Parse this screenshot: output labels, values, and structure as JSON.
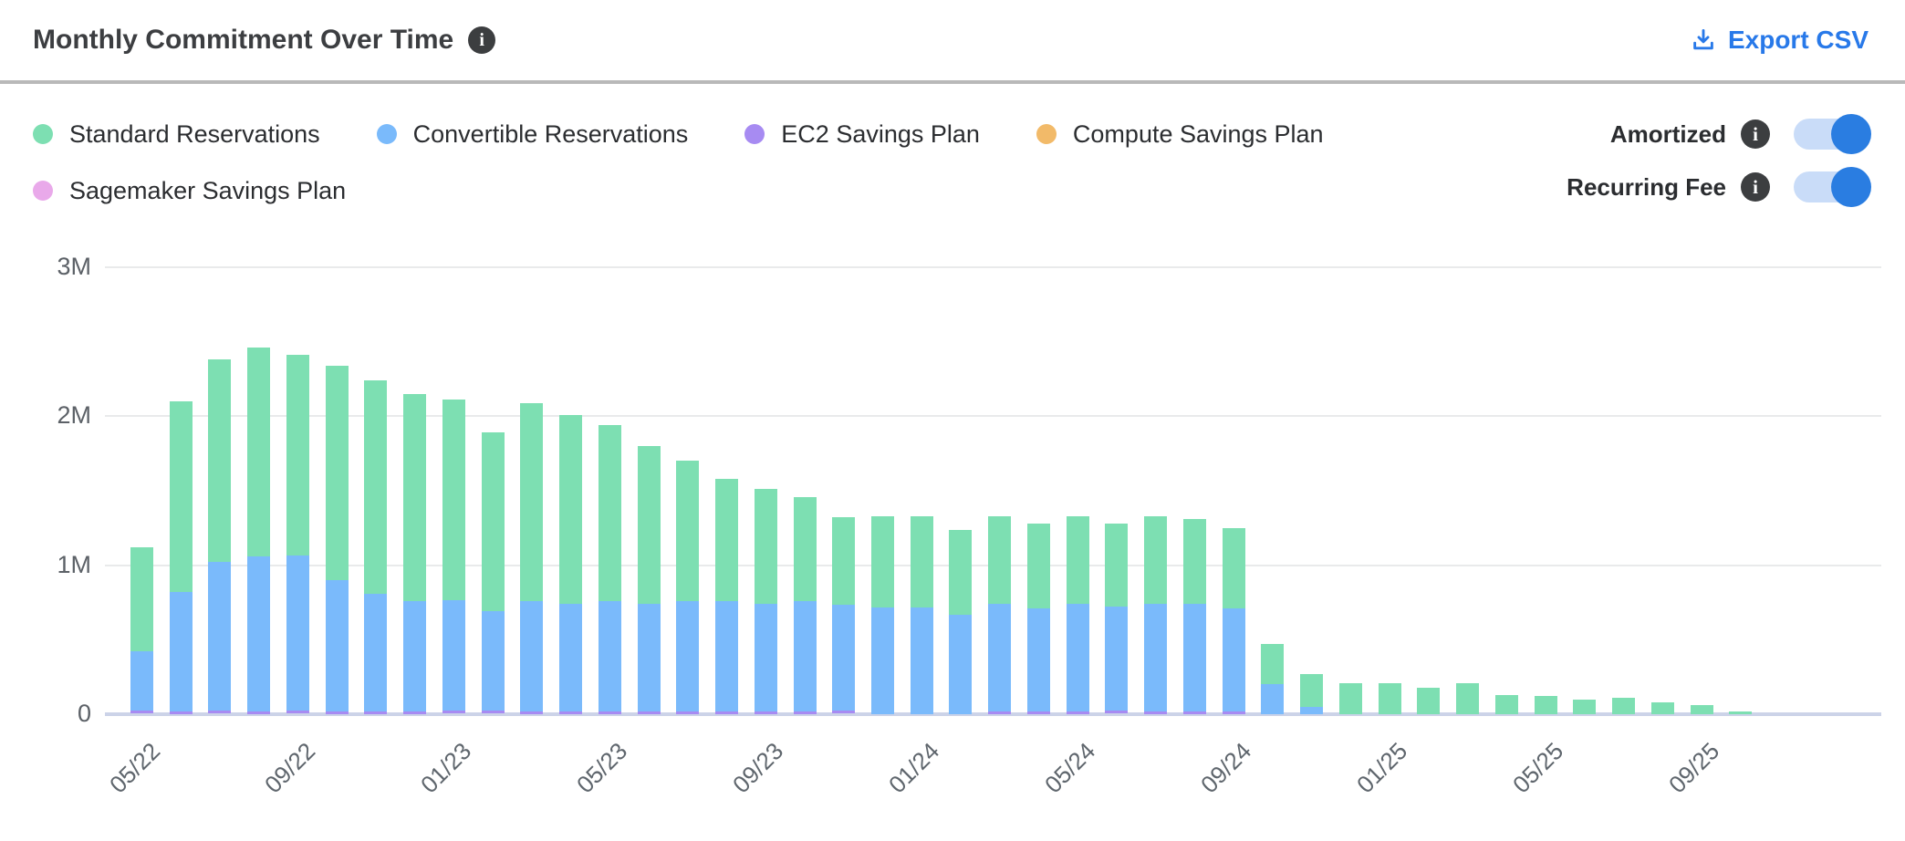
{
  "header": {
    "title": "Monthly Commitment Over Time",
    "export_label": "Export CSV"
  },
  "icons": {
    "info_glyph": "i"
  },
  "colors": {
    "accent_blue": "#2879e9",
    "toggle_on": "#2a7de1",
    "toggle_track": "#c9dcf8",
    "separator": "#b9b9b9",
    "gridline": "#e9eaeb",
    "axis_line": "#ccd3e8"
  },
  "legend": {
    "items": [
      {
        "label": "Standard Reservations",
        "color": "#7ddfb2"
      },
      {
        "label": "Convertible Reservations",
        "color": "#7abafb"
      },
      {
        "label": "EC2 Savings Plan",
        "color": "#a78bf2"
      },
      {
        "label": "Compute Savings Plan",
        "color": "#f2ba69"
      },
      {
        "label": "Sagemaker Savings Plan",
        "color": "#e9a9ea"
      }
    ]
  },
  "toggles": [
    {
      "label": "Amortized",
      "on": true
    },
    {
      "label": "Recurring Fee",
      "on": true
    }
  ],
  "chart_data": {
    "type": "bar",
    "stacked": true,
    "title": "Monthly Commitment Over Time",
    "unit": "M (millions, monthly commitment)",
    "ylim": [
      0,
      3
    ],
    "y_ticks": [
      {
        "label": "3M",
        "value": 3
      },
      {
        "label": "2M",
        "value": 2
      },
      {
        "label": "1M",
        "value": 1
      },
      {
        "label": "0",
        "value": 0
      }
    ],
    "x_tick_every": 4,
    "legend_position": "top-left",
    "grid": true,
    "x": [
      "05/22",
      "06/22",
      "07/22",
      "08/22",
      "09/22",
      "10/22",
      "11/22",
      "12/22",
      "01/23",
      "02/23",
      "03/23",
      "04/23",
      "05/23",
      "06/23",
      "07/23",
      "08/23",
      "09/23",
      "10/23",
      "11/23",
      "12/23",
      "01/24",
      "02/24",
      "03/24",
      "04/24",
      "05/24",
      "06/24",
      "07/24",
      "08/24",
      "09/24",
      "10/24",
      "11/24",
      "12/24",
      "01/25",
      "02/25",
      "03/25",
      "04/25",
      "05/25",
      "06/25",
      "07/25",
      "08/25",
      "09/25",
      "10/25"
    ],
    "series": [
      {
        "name": "Standard Reservations",
        "color": "#7ddfb2",
        "values": [
          0.7,
          1.28,
          1.36,
          1.4,
          1.35,
          1.44,
          1.43,
          1.39,
          1.35,
          1.2,
          1.33,
          1.27,
          1.18,
          1.06,
          0.94,
          0.82,
          0.77,
          0.7,
          0.59,
          0.61,
          0.61,
          0.57,
          0.59,
          0.57,
          0.59,
          0.56,
          0.59,
          0.57,
          0.54,
          0.27,
          0.22,
          0.21,
          0.21,
          0.18,
          0.21,
          0.13,
          0.12,
          0.1,
          0.11,
          0.08,
          0.06,
          0.02
        ]
      },
      {
        "name": "Convertible Reservations",
        "color": "#7abafb",
        "values": [
          0.4,
          0.8,
          1.0,
          1.04,
          1.04,
          0.88,
          0.79,
          0.74,
          0.74,
          0.67,
          0.74,
          0.72,
          0.74,
          0.72,
          0.74,
          0.74,
          0.72,
          0.74,
          0.71,
          0.72,
          0.72,
          0.67,
          0.72,
          0.69,
          0.72,
          0.7,
          0.72,
          0.72,
          0.69,
          0.2,
          0.05,
          0,
          0,
          0,
          0,
          0,
          0,
          0,
          0,
          0,
          0,
          0
        ]
      },
      {
        "name": "EC2 Savings Plan",
        "color": "#a78bf2",
        "values": [
          0.02,
          0.02,
          0.02,
          0.02,
          0.02,
          0.02,
          0.02,
          0.02,
          0.02,
          0.02,
          0.02,
          0.02,
          0.02,
          0.02,
          0.02,
          0.02,
          0.02,
          0.02,
          0.02,
          0,
          0,
          0,
          0.02,
          0.02,
          0.02,
          0.02,
          0.02,
          0.02,
          0.02,
          0,
          0,
          0,
          0,
          0,
          0,
          0,
          0,
          0,
          0,
          0,
          0,
          0
        ]
      },
      {
        "name": "Compute Savings Plan",
        "color": "#f2ba69",
        "values": [
          0,
          0,
          0,
          0,
          0,
          0,
          0,
          0,
          0,
          0,
          0,
          0,
          0,
          0,
          0,
          0,
          0,
          0,
          0,
          0,
          0,
          0,
          0,
          0,
          0,
          0,
          0,
          0,
          0,
          0,
          0,
          0,
          0,
          0,
          0,
          0,
          0,
          0,
          0,
          0,
          0,
          0
        ]
      },
      {
        "name": "Sagemaker Savings Plan",
        "color": "#e9a9ea",
        "values": [
          0,
          0,
          0,
          0,
          0,
          0,
          0,
          0,
          0,
          0,
          0,
          0,
          0,
          0,
          0,
          0,
          0,
          0,
          0,
          0,
          0,
          0,
          0,
          0,
          0,
          0,
          0,
          0,
          0,
          0,
          0,
          0,
          0,
          0,
          0,
          0,
          0,
          0,
          0,
          0,
          0,
          0
        ]
      }
    ]
  }
}
